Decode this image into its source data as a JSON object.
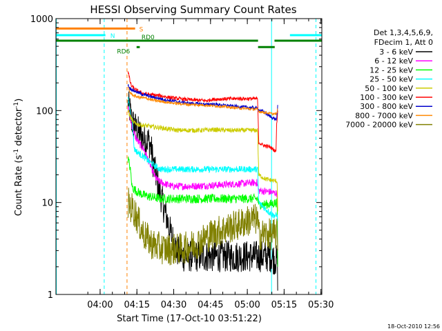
{
  "chart_data": {
    "type": "line",
    "title": "HESSI Observing Summary Count Rates",
    "xlabel": "Start Time (17-Oct-10 03:51:22)",
    "ylabel_parts": [
      "Count Rate (s",
      "-1",
      " detector",
      "-1",
      ")"
    ],
    "yscale": "log",
    "ylim": [
      1,
      1000
    ],
    "xlim_minutes": [
      -9.37,
      99.0
    ],
    "x_tick_labels": [
      "04:00",
      "04:15",
      "04:30",
      "04:45",
      "05:00",
      "05:15",
      "05:30"
    ],
    "x_tick_minutes": [
      8.63,
      23.63,
      38.63,
      53.63,
      68.63,
      83.63,
      98.63
    ],
    "y_tick_labels": [
      "1",
      "10",
      "100",
      "1000"
    ],
    "y_tick_values": [
      1,
      10,
      100,
      1000
    ],
    "timestamp": "18-Oct-2010 12:56",
    "legend": {
      "header": [
        "Det 1,3,4,5,6,9,",
        "FDecim 1, Att 0"
      ],
      "entries": [
        {
          "label": "3 - 6 keV",
          "color": "#000000"
        },
        {
          "label": "6 - 12 keV",
          "color": "#ff00ff"
        },
        {
          "label": "12 - 25 keV",
          "color": "#00ff00"
        },
        {
          "label": "25 - 50 keV",
          "color": "#00ffff"
        },
        {
          "label": "50 - 100 keV",
          "color": "#cccc00"
        },
        {
          "label": "100 - 300 keV",
          "color": "#ff0000"
        },
        {
          "label": "300 - 800 keV",
          "color": "#0000cc"
        },
        {
          "label": "800 - 7000 keV",
          "color": "#ff8800"
        },
        {
          "label": "7000 - 20000 keV",
          "color": "#808000"
        }
      ]
    },
    "flags": [
      {
        "label": "S",
        "color": "#ff8000",
        "y": 780,
        "label_x_min": 24.6,
        "segments": [
          [
            -9.37,
            22.9
          ]
        ]
      },
      {
        "label": "N",
        "color": "#00ffff",
        "y": 660,
        "label_x_min": 12.8,
        "segments": [
          [
            -9.37,
            10.8
          ],
          [
            86.0,
            99.0
          ]
        ]
      },
      {
        "label": "RD0",
        "color": "#008000",
        "y": 575,
        "label_x_min": 25.5,
        "segments": [
          [
            -9.37,
            73.0
          ],
          [
            79.7,
            99.0
          ]
        ]
      },
      {
        "label": "RD6",
        "color": "#008000",
        "y": 490,
        "label_x_min": 15.5,
        "segments": [
          [
            23.5,
            24.8
          ],
          [
            73.0,
            79.8
          ]
        ]
      }
    ],
    "vertical_markers": [
      {
        "x_minute": -9.2,
        "color": "#00ffff",
        "style": "solid"
      },
      {
        "x_minute": 10.3,
        "color": "#00ffff",
        "style": "dashed"
      },
      {
        "x_minute": 19.6,
        "color": "#ff8000",
        "style": "dashed"
      },
      {
        "x_minute": 78.5,
        "color": "#00ffff",
        "style": "solid"
      },
      {
        "x_minute": 96.6,
        "color": "#00ffff",
        "style": "dashed"
      }
    ],
    "series": [
      {
        "name": "3 - 6 keV",
        "color": "#000000",
        "noise": 0.35,
        "points": [
          [
            20.0,
            115
          ],
          [
            20.8,
            100
          ],
          [
            21.6,
            75
          ],
          [
            22.4,
            70
          ],
          [
            23.6,
            62
          ],
          [
            25.0,
            55
          ],
          [
            26.6,
            48
          ],
          [
            28.5,
            47
          ],
          [
            29.5,
            38
          ],
          [
            30.2,
            28
          ],
          [
            31.5,
            19
          ],
          [
            33.0,
            13
          ],
          [
            34.5,
            9
          ],
          [
            36.0,
            6.5
          ],
          [
            37.2,
            4.8
          ],
          [
            38.5,
            3.8
          ],
          [
            40.0,
            3.0
          ],
          [
            42.0,
            2.6
          ],
          [
            73.0,
            2.6
          ],
          [
            78.5,
            2.6
          ],
          [
            79.0,
            2.5
          ],
          [
            80.8,
            2.3
          ],
          [
            81.0,
            1.1
          ]
        ]
      },
      {
        "name": "6 - 12 keV",
        "color": "#ff00ff",
        "noise": 0.08,
        "points": [
          [
            20.0,
            110
          ],
          [
            21.0,
            80
          ],
          [
            22.0,
            62
          ],
          [
            23.0,
            52
          ],
          [
            24.5,
            44
          ],
          [
            26.5,
            38
          ],
          [
            28.0,
            30
          ],
          [
            29.5,
            24
          ],
          [
            31.0,
            19
          ],
          [
            32.5,
            17
          ],
          [
            35.0,
            16
          ],
          [
            38.0,
            15
          ],
          [
            45.0,
            15
          ],
          [
            55.0,
            15.4
          ],
          [
            65.0,
            16
          ],
          [
            72.5,
            16.5
          ],
          [
            73.3,
            13.5
          ],
          [
            78.0,
            13
          ],
          [
            80.8,
            12.5
          ],
          [
            81.0,
            2
          ]
        ]
      },
      {
        "name": "12 - 25 keV",
        "color": "#00ff00",
        "noise": 0.1,
        "points": [
          [
            20.0,
            30
          ],
          [
            20.6,
            26
          ],
          [
            21.2,
            20
          ],
          [
            21.6,
            15
          ],
          [
            22.4,
            14
          ],
          [
            24.0,
            13
          ],
          [
            26.5,
            12
          ],
          [
            29.5,
            11.5
          ],
          [
            33.0,
            11
          ],
          [
            40.0,
            11
          ],
          [
            50.0,
            11
          ],
          [
            60.0,
            11
          ],
          [
            67.0,
            11
          ],
          [
            72.8,
            11
          ],
          [
            73.4,
            9.5
          ],
          [
            78.0,
            9.6
          ],
          [
            80.8,
            10
          ],
          [
            81.0,
            2
          ]
        ]
      },
      {
        "name": "25 - 50 keV",
        "color": "#00ffff",
        "noise": 0.07,
        "points": [
          [
            20.0,
            140
          ],
          [
            21.0,
            95
          ],
          [
            21.8,
            75
          ],
          [
            22.2,
            50
          ],
          [
            22.6,
            38
          ],
          [
            24.0,
            35
          ],
          [
            26.0,
            32
          ],
          [
            28.5,
            28
          ],
          [
            31.0,
            25
          ],
          [
            33.0,
            23
          ],
          [
            40.0,
            23
          ],
          [
            50.0,
            23
          ],
          [
            60.0,
            23
          ],
          [
            70.0,
            23
          ],
          [
            72.8,
            23
          ],
          [
            73.3,
            10
          ],
          [
            76.0,
            8.5
          ],
          [
            79.0,
            7.3
          ],
          [
            80.8,
            7.1
          ],
          [
            81.0,
            6.5
          ]
        ]
      },
      {
        "name": "50 - 100 keV",
        "color": "#cccc00",
        "noise": 0.05,
        "points": [
          [
            20.0,
            100
          ],
          [
            21.0,
            85
          ],
          [
            22.0,
            76
          ],
          [
            23.0,
            72
          ],
          [
            25.0,
            70
          ],
          [
            28.0,
            68
          ],
          [
            31.0,
            66
          ],
          [
            35.0,
            64
          ],
          [
            40.0,
            61
          ],
          [
            45.0,
            61
          ],
          [
            50.0,
            61
          ],
          [
            55.0,
            62
          ],
          [
            60.0,
            61
          ],
          [
            65.0,
            61
          ],
          [
            72.8,
            61
          ],
          [
            73.3,
            20
          ],
          [
            76.0,
            18
          ],
          [
            80.8,
            17
          ],
          [
            81.0,
            8
          ]
        ]
      },
      {
        "name": "100 - 300 keV",
        "color": "#ff0000",
        "noise": 0.04,
        "points": [
          [
            20.0,
            270
          ],
          [
            20.8,
            210
          ],
          [
            21.4,
            185
          ],
          [
            22.0,
            178
          ],
          [
            23.0,
            170
          ],
          [
            24.5,
            160
          ],
          [
            26.0,
            154
          ],
          [
            28.0,
            150
          ],
          [
            30.0,
            148
          ],
          [
            33.0,
            145
          ],
          [
            36.0,
            140
          ],
          [
            40.0,
            135
          ],
          [
            45.0,
            131
          ],
          [
            50.0,
            129
          ],
          [
            52.5,
            128
          ],
          [
            54.0,
            132
          ],
          [
            60.0,
            134
          ],
          [
            65.0,
            135
          ],
          [
            72.8,
            134
          ],
          [
            73.3,
            45
          ],
          [
            75.0,
            42
          ],
          [
            78.0,
            40
          ],
          [
            80.3,
            36
          ],
          [
            80.6,
            70
          ],
          [
            81.0,
            100
          ]
        ]
      },
      {
        "name": "300 - 800 keV",
        "color": "#0000cc",
        "noise": 0.035,
        "points": [
          [
            20.0,
            190
          ],
          [
            20.7,
            175
          ],
          [
            21.5,
            170
          ],
          [
            22.2,
            165
          ],
          [
            23.0,
            162
          ],
          [
            24.5,
            155
          ],
          [
            26.0,
            150
          ],
          [
            28.0,
            145
          ],
          [
            30.0,
            140
          ],
          [
            33.0,
            135
          ],
          [
            36.0,
            130
          ],
          [
            40.0,
            125
          ],
          [
            45.0,
            120
          ],
          [
            50.0,
            118
          ],
          [
            52.5,
            116
          ],
          [
            54.0,
            118
          ],
          [
            58.0,
            115
          ],
          [
            62.0,
            112
          ],
          [
            66.0,
            110
          ],
          [
            70.0,
            108
          ],
          [
            72.8,
            106
          ],
          [
            73.3,
            101
          ],
          [
            75.0,
            98
          ],
          [
            77.0,
            90
          ],
          [
            79.0,
            83
          ],
          [
            80.6,
            80
          ],
          [
            81.0,
            115
          ]
        ]
      },
      {
        "name": "800 - 7000 keV",
        "color": "#ff8800",
        "noise": 0.03,
        "points": [
          [
            20.0,
            175
          ],
          [
            20.7,
            160
          ],
          [
            21.5,
            150
          ],
          [
            22.5,
            145
          ],
          [
            24.0,
            140
          ],
          [
            26.0,
            138
          ],
          [
            28.0,
            135
          ],
          [
            30.0,
            130
          ],
          [
            34.0,
            125
          ],
          [
            38.0,
            121
          ],
          [
            42.0,
            118
          ],
          [
            46.0,
            116
          ],
          [
            50.0,
            115
          ],
          [
            54.0,
            113
          ],
          [
            58.0,
            111
          ],
          [
            62.0,
            108
          ],
          [
            66.0,
            106
          ],
          [
            70.0,
            104
          ],
          [
            72.8,
            103
          ],
          [
            73.3,
            98
          ],
          [
            76.0,
            95
          ],
          [
            79.0,
            92
          ],
          [
            80.6,
            92
          ],
          [
            81.0,
            105
          ]
        ]
      },
      {
        "name": "7000 - 20000 keV",
        "color": "#808000",
        "noise": 0.35,
        "points": [
          [
            20.0,
            10
          ],
          [
            21.0,
            9
          ],
          [
            22.0,
            8.5
          ],
          [
            23.0,
            7.5
          ],
          [
            24.0,
            6.5
          ],
          [
            25.0,
            5.5
          ],
          [
            26.5,
            4.5
          ],
          [
            28.0,
            4
          ],
          [
            30.0,
            3.5
          ],
          [
            33.0,
            3.2
          ],
          [
            36.0,
            3.1
          ],
          [
            40.0,
            3.1
          ],
          [
            45.0,
            3.3
          ],
          [
            48.0,
            3.6
          ],
          [
            52.0,
            4.2
          ],
          [
            56.0,
            4.8
          ],
          [
            60.0,
            5.2
          ],
          [
            64.0,
            5.6
          ],
          [
            68.0,
            6.2
          ],
          [
            71.0,
            6.6
          ],
          [
            72.8,
            6.5
          ],
          [
            73.3,
            4.5
          ],
          [
            78.0,
            4.5
          ],
          [
            80.8,
            4.5
          ],
          [
            81.0,
            3
          ]
        ]
      }
    ]
  }
}
